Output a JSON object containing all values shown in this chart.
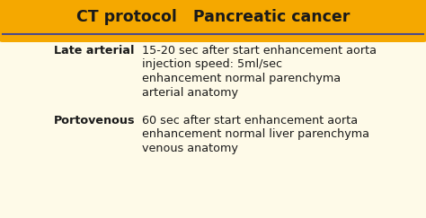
{
  "title": "CT protocol   Pancreatic cancer",
  "title_bg_color": "#F5A800",
  "body_bg_color": "#FEFAE8",
  "border_color": "#4A4A8A",
  "title_fontsize": 12.5,
  "body_fontsize": 9.2,
  "label_fontsize": 9.2,
  "rows": [
    {
      "label": "Late arterial",
      "lines": [
        "15-20 sec after start enhancement aorta",
        "injection speed: 5ml/sec",
        "enhancement normal parenchyma",
        "arterial anatomy"
      ]
    },
    {
      "label": "Portovenous",
      "lines": [
        "60 sec after start enhancement aorta",
        "enhancement normal liver parenchyma",
        "venous anatomy"
      ]
    }
  ]
}
